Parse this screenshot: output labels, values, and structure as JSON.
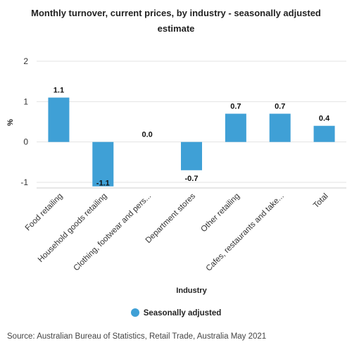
{
  "chart_data": {
    "type": "bar",
    "title": "Monthly turnover, current prices, by industry - seasonally adjusted estimate",
    "xlabel": "Industry",
    "ylabel": "%",
    "categories": [
      "Food retailing",
      "Household goods retailing",
      "Clothing, footwear and pers...",
      "Department stores",
      "Other retailing",
      "Cafes, restaurants and take...",
      "Total"
    ],
    "series": [
      {
        "name": "Seasonally adjusted",
        "values": [
          1.1,
          -1.1,
          0.0,
          -0.7,
          0.7,
          0.7,
          0.4
        ]
      }
    ],
    "data_labels": [
      "1.1",
      "-1.1",
      "0.0",
      "-0.7",
      "0.7",
      "0.7",
      "0.4"
    ],
    "yticks": [
      "2",
      "1",
      "0",
      "-1"
    ],
    "ylim": [
      -1,
      2
    ],
    "grid": true,
    "legend_position": "bottom",
    "bar_color": "#3fa0d6"
  },
  "source": "Source: Australian Bureau of Statistics, Retail Trade, Australia May 2021"
}
